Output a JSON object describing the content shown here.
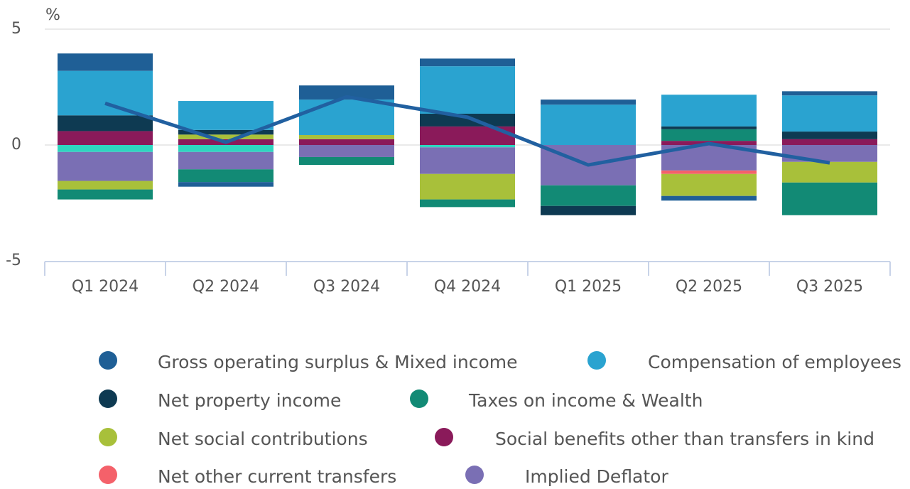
{
  "chart_data": {
    "type": "bar",
    "stacked": true,
    "y_unit_label": "%",
    "categories": [
      "Q1 2024",
      "Q2 2024",
      "Q3 2024",
      "Q4 2024",
      "Q1 2025",
      "Q2 2025",
      "Q3 2025"
    ],
    "series": [
      {
        "name": "Gross operating surplus & Mixed income",
        "color": "#1f5f96",
        "values": [
          0.75,
          -0.2,
          0.61,
          0.33,
          0.22,
          -0.2,
          0.18
        ]
      },
      {
        "name": "Compensation of employees",
        "color": "#2aa3d0",
        "values": [
          1.92,
          1.25,
          1.53,
          2.05,
          1.74,
          1.37,
          1.56
        ]
      },
      {
        "name": "Net property income",
        "color": "#0e3a52",
        "values": [
          0.68,
          0.2,
          0,
          0.55,
          -0.4,
          0.12,
          0.33
        ]
      },
      {
        "name": "Taxes on income & Wealth",
        "color": "#128a75",
        "values": [
          -0.43,
          -0.55,
          -0.34,
          -0.33,
          -0.89,
          0.5,
          -1.41
        ]
      },
      {
        "name": "Net social contributions",
        "color": "#a8c03a",
        "values": [
          -0.37,
          0.2,
          0.18,
          -1.1,
          0,
          -0.95,
          -0.89
        ]
      },
      {
        "name": "Social benefits other than transfers in kind",
        "color": "#8a1a5a",
        "values": [
          0.6,
          0.25,
          0.25,
          0.8,
          0,
          0.18,
          0.25
        ]
      },
      {
        "name": "Net other current transfers",
        "color": "#f4616a",
        "values": [
          0,
          0,
          0,
          0,
          0,
          -0.15,
          0
        ]
      },
      {
        "name": "Implied Deflator",
        "color": "#7a6fb4",
        "values": [
          -1.25,
          -0.75,
          -0.52,
          -1.15,
          -1.74,
          -1.1,
          -0.73
        ]
      },
      {
        "color": "#2ed6c0",
        "values": [
          -0.3,
          -0.3,
          0,
          -0.1,
          0,
          0,
          0
        ]
      },
      {
        "type": "line",
        "color": "#2160a0",
        "values": [
          1.8,
          0.12,
          2.08,
          1.2,
          -0.86,
          0.06,
          -0.77
        ]
      }
    ],
    "ylim": [
      -5,
      5
    ],
    "yticks": [
      -5,
      0,
      5
    ],
    "grid": true
  }
}
